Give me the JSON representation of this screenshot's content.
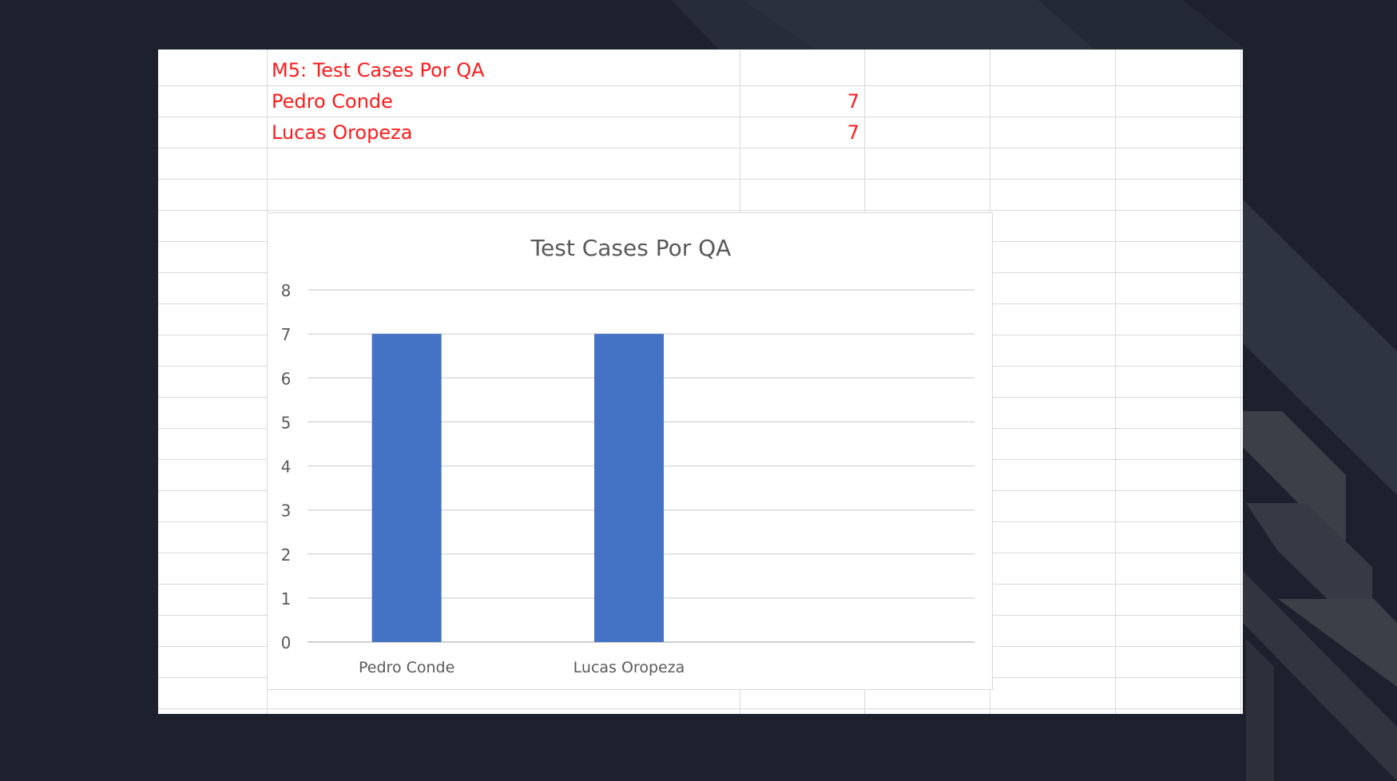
{
  "spreadsheet": {
    "header_cell": "M5:  Test Cases Por QA",
    "rows": [
      {
        "name": "Pedro Conde",
        "value": "7"
      },
      {
        "name": "Lucas Oropeza",
        "value": "7"
      }
    ]
  },
  "chart_data": {
    "type": "bar",
    "title": "Test Cases Por QA",
    "categories": [
      "Pedro Conde",
      "Lucas Oropeza"
    ],
    "values": [
      7,
      7
    ],
    "ylim": [
      0,
      8
    ],
    "yticks": [
      "0",
      "1",
      "2",
      "3",
      "4",
      "5",
      "6",
      "7",
      "8"
    ],
    "xlabel": "",
    "ylabel": "",
    "grid": true,
    "legend": "none",
    "bar_color": "#4472c4"
  },
  "colors": {
    "background": "#1c212d",
    "cell_text": "#ff1a1a",
    "gridline": "#d9d9d9"
  }
}
